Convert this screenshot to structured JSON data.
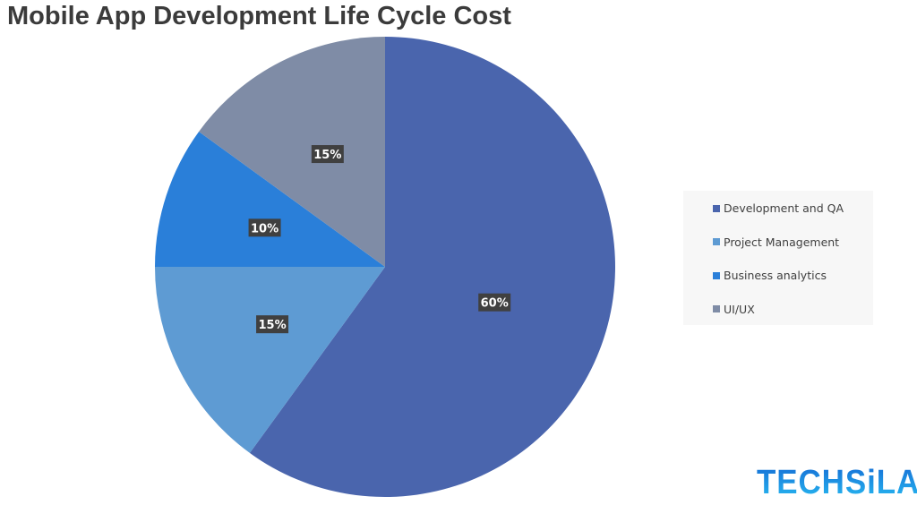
{
  "chart_data": {
    "type": "pie",
    "title": "Mobile App Development Life Cycle Cost",
    "categories": [
      "Development and QA",
      "Project Management",
      "Business analytics",
      "UI/UX"
    ],
    "values": [
      60,
      15,
      10,
      15
    ],
    "labels": [
      "60%",
      "15%",
      "10%",
      "15%"
    ],
    "colors": [
      "#4a65ad",
      "#5e9bd3",
      "#2a7fd9",
      "#7f8ca6"
    ],
    "start": "top, clockwise",
    "legend_placement": "right"
  },
  "logo": "TECHSiLA"
}
